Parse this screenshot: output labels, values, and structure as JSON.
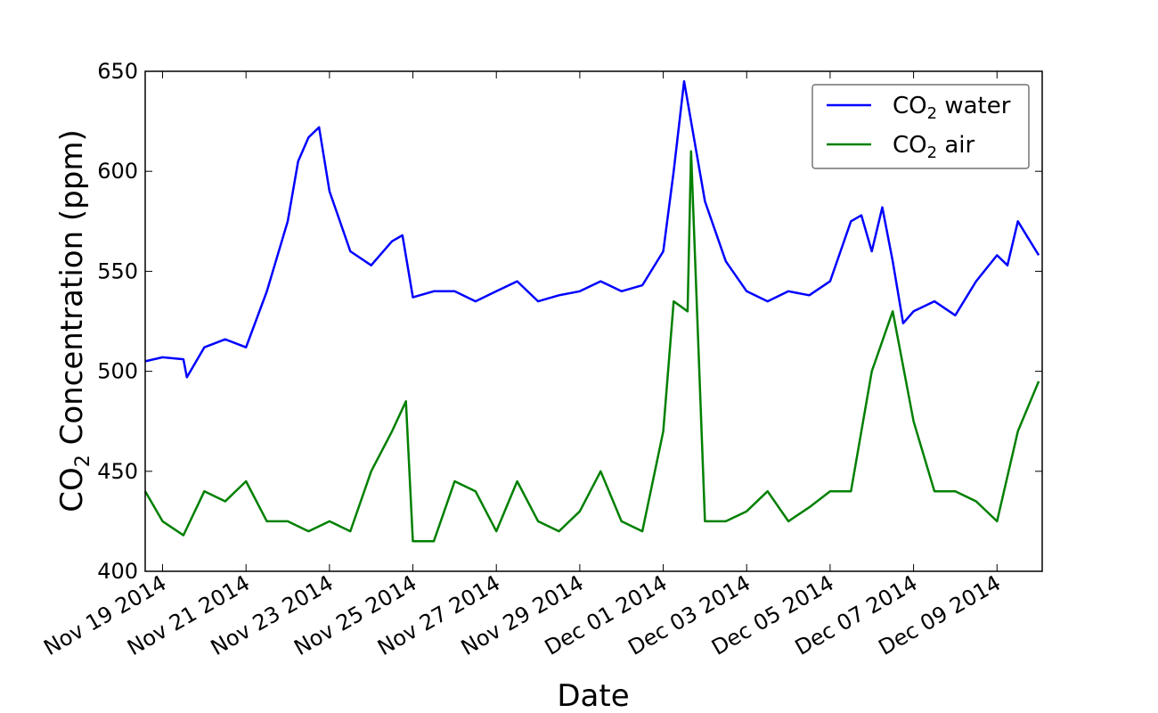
{
  "chart_data": {
    "type": "line",
    "title": "",
    "xlabel": "Date",
    "ylabel_main": "CO",
    "ylabel_sub": "2",
    "ylabel_rest": " Concentration (ppm)",
    "ylim": [
      400,
      650
    ],
    "xlim": [
      "2014-11-18T14:00",
      "2014-12-10T02:00"
    ],
    "grid": false,
    "legend": "top-right",
    "yticks": [
      400,
      450,
      500,
      550,
      600,
      650
    ],
    "xticks": [
      {
        "date": "2014-11-19",
        "label": "Nov 19 2014"
      },
      {
        "date": "2014-11-21",
        "label": "Nov 21 2014"
      },
      {
        "date": "2014-11-23",
        "label": "Nov 23 2014"
      },
      {
        "date": "2014-11-25",
        "label": "Nov 25 2014"
      },
      {
        "date": "2014-11-27",
        "label": "Nov 27 2014"
      },
      {
        "date": "2014-11-29",
        "label": "Nov 29 2014"
      },
      {
        "date": "2014-12-01",
        "label": "Dec 01 2014"
      },
      {
        "date": "2014-12-03",
        "label": "Dec 03 2014"
      },
      {
        "date": "2014-12-05",
        "label": "Dec 05 2014"
      },
      {
        "date": "2014-12-07",
        "label": "Dec 07 2014"
      },
      {
        "date": "2014-12-09",
        "label": "Dec 09 2014"
      }
    ],
    "series": [
      {
        "name_main": "CO",
        "name_sub": "2",
        "name_rest": " water",
        "color": "#0000ff",
        "x": [
          "2014-11-18T14:00",
          "2014-11-19T00:00",
          "2014-11-19T12:00",
          "2014-11-19T14:00",
          "2014-11-20T00:00",
          "2014-11-20T12:00",
          "2014-11-21T00:00",
          "2014-11-21T12:00",
          "2014-11-22T00:00",
          "2014-11-22T06:00",
          "2014-11-22T12:00",
          "2014-11-22T18:00",
          "2014-11-23T00:00",
          "2014-11-23T12:00",
          "2014-11-24T00:00",
          "2014-11-24T12:00",
          "2014-11-24T18:00",
          "2014-11-25T00:00",
          "2014-11-25T12:00",
          "2014-11-26T00:00",
          "2014-11-26T12:00",
          "2014-11-27T00:00",
          "2014-11-27T12:00",
          "2014-11-28T00:00",
          "2014-11-28T12:00",
          "2014-11-29T00:00",
          "2014-11-29T12:00",
          "2014-11-30T00:00",
          "2014-11-30T12:00",
          "2014-12-01T00:00",
          "2014-12-01T06:00",
          "2014-12-01T12:00",
          "2014-12-02T00:00",
          "2014-12-02T12:00",
          "2014-12-03T00:00",
          "2014-12-03T12:00",
          "2014-12-04T00:00",
          "2014-12-04T12:00",
          "2014-12-05T00:00",
          "2014-12-05T12:00",
          "2014-12-05T18:00",
          "2014-12-06T00:00",
          "2014-12-06T06:00",
          "2014-12-06T12:00",
          "2014-12-06T18:00",
          "2014-12-07T00:00",
          "2014-12-07T12:00",
          "2014-12-08T00:00",
          "2014-12-08T12:00",
          "2014-12-09T00:00",
          "2014-12-09T06:00",
          "2014-12-09T12:00",
          "2014-12-10T00:00"
        ],
        "values": [
          505,
          507,
          506,
          497,
          512,
          516,
          512,
          540,
          575,
          605,
          617,
          622,
          590,
          560,
          553,
          565,
          568,
          537,
          540,
          540,
          535,
          540,
          545,
          535,
          538,
          540,
          545,
          540,
          543,
          560,
          600,
          645,
          585,
          555,
          540,
          535,
          540,
          538,
          545,
          575,
          578,
          560,
          582,
          555,
          524,
          530,
          535,
          528,
          545,
          558,
          553,
          575,
          558
        ]
      },
      {
        "name_main": "CO",
        "name_sub": "2",
        "name_rest": " air",
        "color": "#008000",
        "x": [
          "2014-11-18T14:00",
          "2014-11-19T00:00",
          "2014-11-19T12:00",
          "2014-11-20T00:00",
          "2014-11-20T12:00",
          "2014-11-21T00:00",
          "2014-11-21T12:00",
          "2014-11-22T00:00",
          "2014-11-22T12:00",
          "2014-11-23T00:00",
          "2014-11-23T12:00",
          "2014-11-24T00:00",
          "2014-11-24T12:00",
          "2014-11-24T20:00",
          "2014-11-25T00:00",
          "2014-11-25T12:00",
          "2014-11-26T00:00",
          "2014-11-26T12:00",
          "2014-11-27T00:00",
          "2014-11-27T12:00",
          "2014-11-28T00:00",
          "2014-11-28T12:00",
          "2014-11-29T00:00",
          "2014-11-29T12:00",
          "2014-11-30T00:00",
          "2014-11-30T12:00",
          "2014-12-01T00:00",
          "2014-12-01T06:00",
          "2014-12-01T14:00",
          "2014-12-01T16:00",
          "2014-12-02T00:00",
          "2014-12-02T12:00",
          "2014-12-03T00:00",
          "2014-12-03T12:00",
          "2014-12-04T00:00",
          "2014-12-04T12:00",
          "2014-12-05T00:00",
          "2014-12-05T12:00",
          "2014-12-06T00:00",
          "2014-12-06T12:00",
          "2014-12-07T00:00",
          "2014-12-07T12:00",
          "2014-12-08T00:00",
          "2014-12-08T12:00",
          "2014-12-09T00:00",
          "2014-12-09T12:00",
          "2014-12-10T00:00"
        ],
        "values": [
          440,
          425,
          418,
          440,
          435,
          445,
          425,
          425,
          420,
          425,
          420,
          450,
          470,
          485,
          415,
          415,
          445,
          440,
          420,
          445,
          425,
          420,
          430,
          450,
          425,
          420,
          470,
          535,
          530,
          610,
          425,
          425,
          430,
          440,
          425,
          432,
          440,
          440,
          500,
          530,
          475,
          440,
          440,
          435,
          425,
          470,
          495
        ]
      }
    ]
  }
}
